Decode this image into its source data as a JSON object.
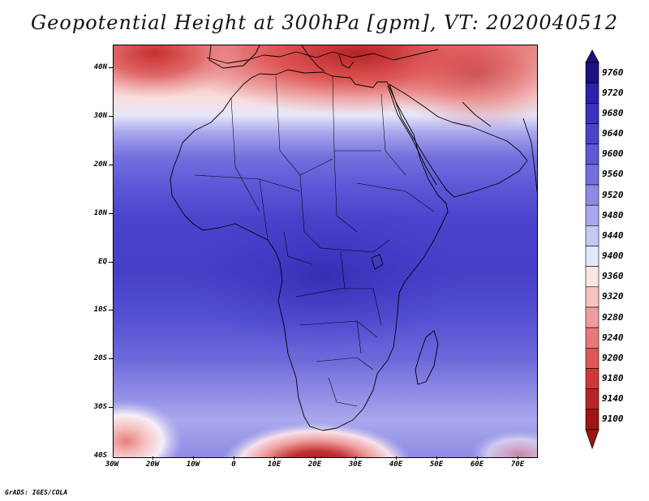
{
  "title": "Geopotential Height at 300hPa [gpm], VT: 2020040512",
  "lat_labels": [
    "40N",
    "30N",
    "20N",
    "10N",
    "EQ",
    "10S",
    "20S",
    "30S",
    "40S"
  ],
  "lon_labels": [
    "30W",
    "20W",
    "10W",
    "0",
    "10E",
    "20E",
    "30E",
    "40E",
    "50E",
    "60E",
    "70E"
  ],
  "colorbar": {
    "levels": [
      "9760",
      "9720",
      "9680",
      "9640",
      "9600",
      "9560",
      "9520",
      "9480",
      "9440",
      "9400",
      "9360",
      "9320",
      "9280",
      "9240",
      "9200",
      "9180",
      "9140",
      "9100"
    ],
    "colors": [
      "#1a1080",
      "#2a22a8",
      "#3a32c0",
      "#4a44cc",
      "#5c58d6",
      "#7470de",
      "#8e8ae4",
      "#aaa8ec",
      "#c8c8f4",
      "#e6e6fa",
      "#fce4e4",
      "#f6c2c2",
      "#ee9e9e",
      "#e67a7a",
      "#de5656",
      "#d03838",
      "#b82424",
      "#a01414"
    ]
  },
  "credit": "GrADS: IGES/COLA"
}
